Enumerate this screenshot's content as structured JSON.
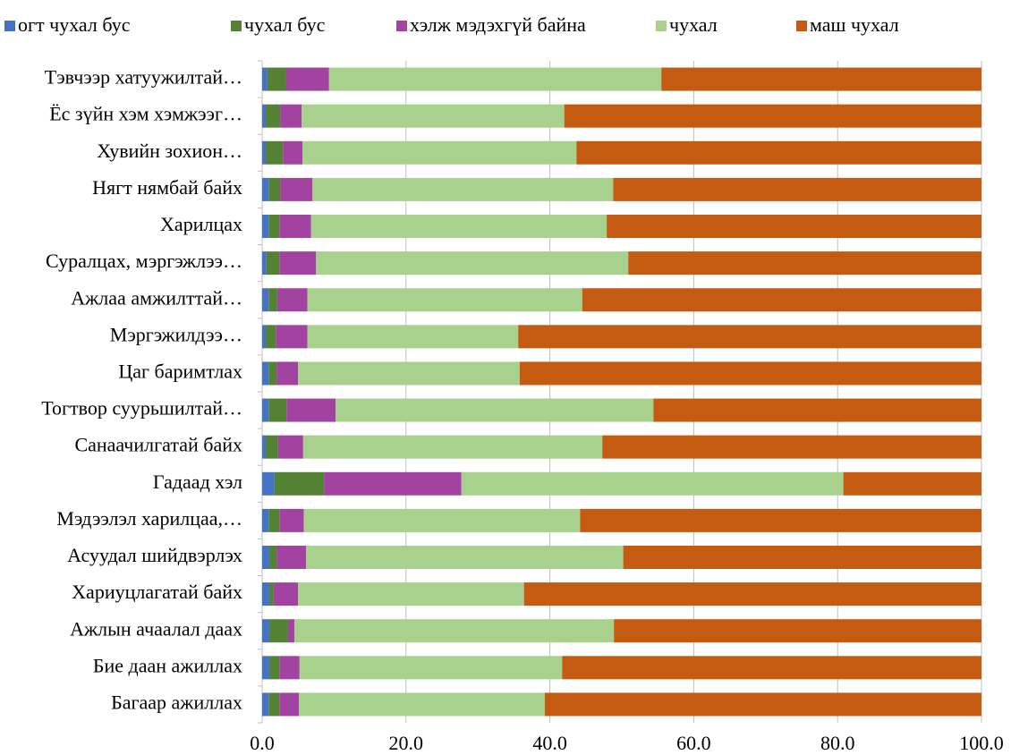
{
  "chart_data": {
    "type": "stacked_barh",
    "categories": [
      "Тэвчээр хатуужилтай…",
      "Ёс зүйн хэм хэмжээг…",
      "Хувийн зохион…",
      "Нягт нямбай байх",
      "Харилцах",
      "Суралцах, мэргэжлээ…",
      "Ажлаа амжилттай…",
      "Мэргэжилдээ…",
      "Цаг баримтлах",
      "Тогтвор суурьшилтай…",
      "Санаачилгатай байх",
      "Гадаад хэл",
      "Мэдээлэл харилцаа,…",
      "Асуудал шийдвэрлэх",
      "Хариуцлагатай байх",
      "Ажлын ачаалал даах",
      "Бие даан ажиллах",
      "Багаар ажиллах"
    ],
    "series": [
      {
        "name": "огт чухал бус",
        "color": "#4472c4",
        "values": [
          0.7,
          0.5,
          0.5,
          0.9,
          0.9,
          0.6,
          0.9,
          0.5,
          0.9,
          0.9,
          0.5,
          1.7,
          0.9,
          1.0,
          1.0,
          1.0,
          1.0,
          0.9
        ]
      },
      {
        "name": "чухал бус",
        "color": "#548235",
        "values": [
          2.6,
          2.0,
          2.4,
          1.6,
          1.5,
          1.8,
          1.2,
          1.4,
          1.1,
          2.5,
          1.7,
          6.9,
          1.5,
          1.0,
          0.6,
          2.6,
          1.4,
          1.5
        ]
      },
      {
        "name": "хэлж мэдэхгүй байна",
        "color": "#a343a1",
        "values": [
          6.0,
          3.0,
          2.7,
          4.5,
          4.4,
          5.1,
          4.2,
          4.4,
          3.0,
          6.8,
          3.5,
          19.1,
          3.4,
          4.1,
          3.4,
          0.9,
          2.8,
          2.7
        ]
      },
      {
        "name": "чухал",
        "color": "#a9d18e",
        "values": [
          46.2,
          36.5,
          38.1,
          41.8,
          41.1,
          43.4,
          38.2,
          29.3,
          30.8,
          44.2,
          41.6,
          53.1,
          38.4,
          44.1,
          31.4,
          44.4,
          36.5,
          34.2
        ]
      },
      {
        "name": "маш чухал",
        "color": "#c55a11",
        "values": [
          44.5,
          58.0,
          56.3,
          51.2,
          52.1,
          49.1,
          55.5,
          64.4,
          64.2,
          45.6,
          52.7,
          19.2,
          55.8,
          49.8,
          63.6,
          51.1,
          58.3,
          60.7
        ]
      }
    ],
    "xlim": [
      0,
      100
    ],
    "xticks": [
      {
        "value": 0,
        "label": "0.0"
      },
      {
        "value": 20,
        "label": "20.0"
      },
      {
        "value": 40,
        "label": "40.0"
      },
      {
        "value": 60,
        "label": "60.0"
      },
      {
        "value": 80,
        "label": "80.0"
      },
      {
        "value": 100,
        "label": "100.0"
      }
    ],
    "grid": true,
    "legend": "top"
  }
}
